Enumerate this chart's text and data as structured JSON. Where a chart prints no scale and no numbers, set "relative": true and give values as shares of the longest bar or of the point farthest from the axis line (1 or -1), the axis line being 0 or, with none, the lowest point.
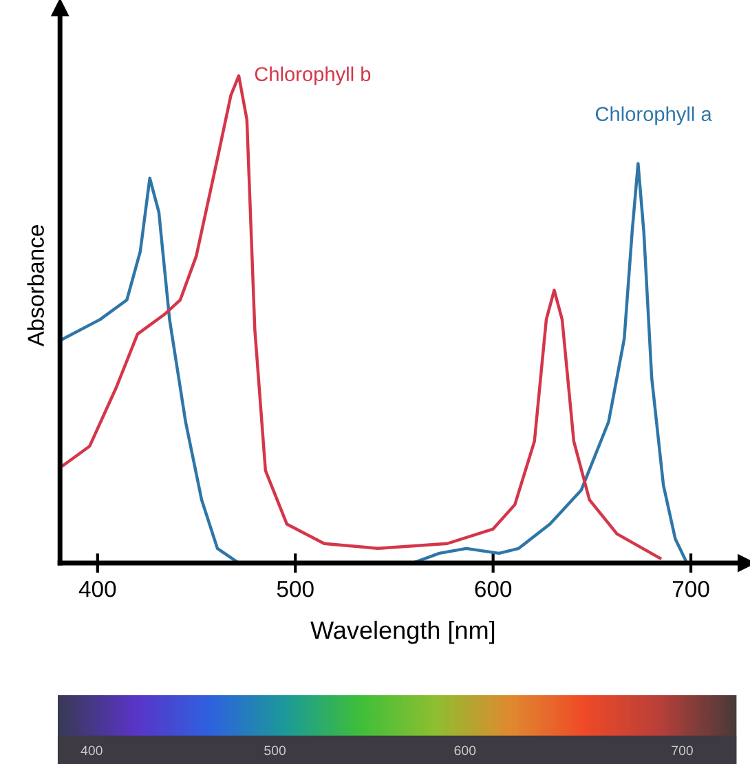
{
  "chart_data": [
    {
      "type": "line",
      "xlabel": "Wavelength [nm]",
      "ylabel": "Absorbance",
      "relative": true,
      "xlim": [
        381,
        728
      ],
      "xticks": [
        400,
        500,
        600,
        700
      ],
      "grid": false,
      "legend": false,
      "marker": "none",
      "line_style": "solid",
      "series": [
        {
          "name": "Chlorophyll a",
          "color": "#2f76a8",
          "x": [
            382.5,
            401.3,
            414.8,
            421.6,
            426.4,
            431,
            436.4,
            444.5,
            452.6,
            460.6,
            471.4,
            559.3,
            572.8,
            586.4,
            603,
            612.9,
            628.7,
            644.6,
            658.4,
            666.3,
            670.3,
            673.3,
            676.2,
            680.2,
            686.1,
            692.1,
            698
          ],
          "values": [
            0.46,
            0.5,
            0.54,
            0.64,
            0.79,
            0.72,
            0.5,
            0.29,
            0.13,
            0.03,
            0,
            0,
            0.02,
            0.03,
            0.02,
            0.03,
            0.08,
            0.15,
            0.29,
            0.46,
            0.68,
            0.82,
            0.68,
            0.38,
            0.16,
            0.05,
            0
          ]
        },
        {
          "name": "Chlorophyll b",
          "color": "#d4364a",
          "x": [
            382.5,
            396,
            409.4,
            420.2,
            433.7,
            441.8,
            449.9,
            460.6,
            467.4,
            471.4,
            475.5,
            479.5,
            484.9,
            495.7,
            514.6,
            541.7,
            576.8,
            600,
            611,
            620.9,
            626.9,
            630.9,
            634.9,
            640.8,
            648.7,
            662.6,
            684.4
          ],
          "values": [
            0.2,
            0.24,
            0.36,
            0.47,
            0.51,
            0.54,
            0.63,
            0.83,
            0.96,
            1,
            0.91,
            0.48,
            0.19,
            0.08,
            0.04,
            0.03,
            0.04,
            0.07,
            0.12,
            0.25,
            0.5,
            0.56,
            0.5,
            0.25,
            0.13,
            0.06,
            0.01
          ]
        }
      ]
    },
    {
      "type": "other",
      "annotations": [
        "400",
        "500",
        "600",
        "700"
      ]
    }
  ]
}
